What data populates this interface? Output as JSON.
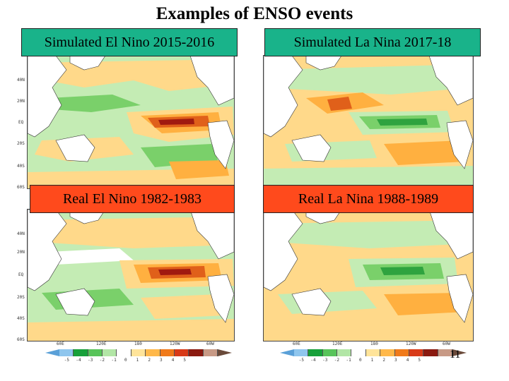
{
  "slide": {
    "title": "Examples of ENSO events",
    "page_number": "11"
  },
  "panels": [
    {
      "label": "Simulated El Nino 2015-2016",
      "kind": "sim"
    },
    {
      "label": "Simulated La Nina 2017-18",
      "kind": "sim"
    },
    {
      "label": "Real El Nino 1982-1983",
      "kind": "real"
    },
    {
      "label": "Real La Nina 1988-1989",
      "kind": "real"
    }
  ],
  "map_axes": {
    "lat_labels_top": [
      "40N",
      "20N",
      "EQ",
      "20S",
      "40S",
      "60S"
    ],
    "lat_labels_bottom": [
      "40N",
      "20N",
      "EQ",
      "20S",
      "40S",
      "60S"
    ],
    "lon_labels": [
      "60E",
      "120E",
      "180",
      "120W",
      "60W"
    ]
  },
  "colorbar": {
    "colors": [
      "#8fc6ee",
      "#17a03a",
      "#58c45a",
      "#b2e6a6",
      "#ffffff",
      "#ffe49a",
      "#ffb84a",
      "#f07a1a",
      "#d83a18",
      "#8b1a10",
      "#c89a86"
    ],
    "arrow_left_color": "#5aa0d8",
    "arrow_right_color": "#6a4a3a",
    "tick_labels": [
      "-5",
      "-4",
      "-3",
      "-2",
      "-1",
      "0",
      "1",
      "2",
      "3",
      "4",
      "5"
    ]
  },
  "colors": {
    "ocean_warm_light": "#ffd98a",
    "ocean_warm_mid": "#ffb040",
    "ocean_warm_strong": "#e0601a",
    "ocean_warm_extreme": "#a01a10",
    "ocean_cool_light": "#c4ecb4",
    "ocean_cool_mid": "#7ad06a",
    "ocean_cool_strong": "#2fa33f",
    "land": "#ffffff"
  }
}
